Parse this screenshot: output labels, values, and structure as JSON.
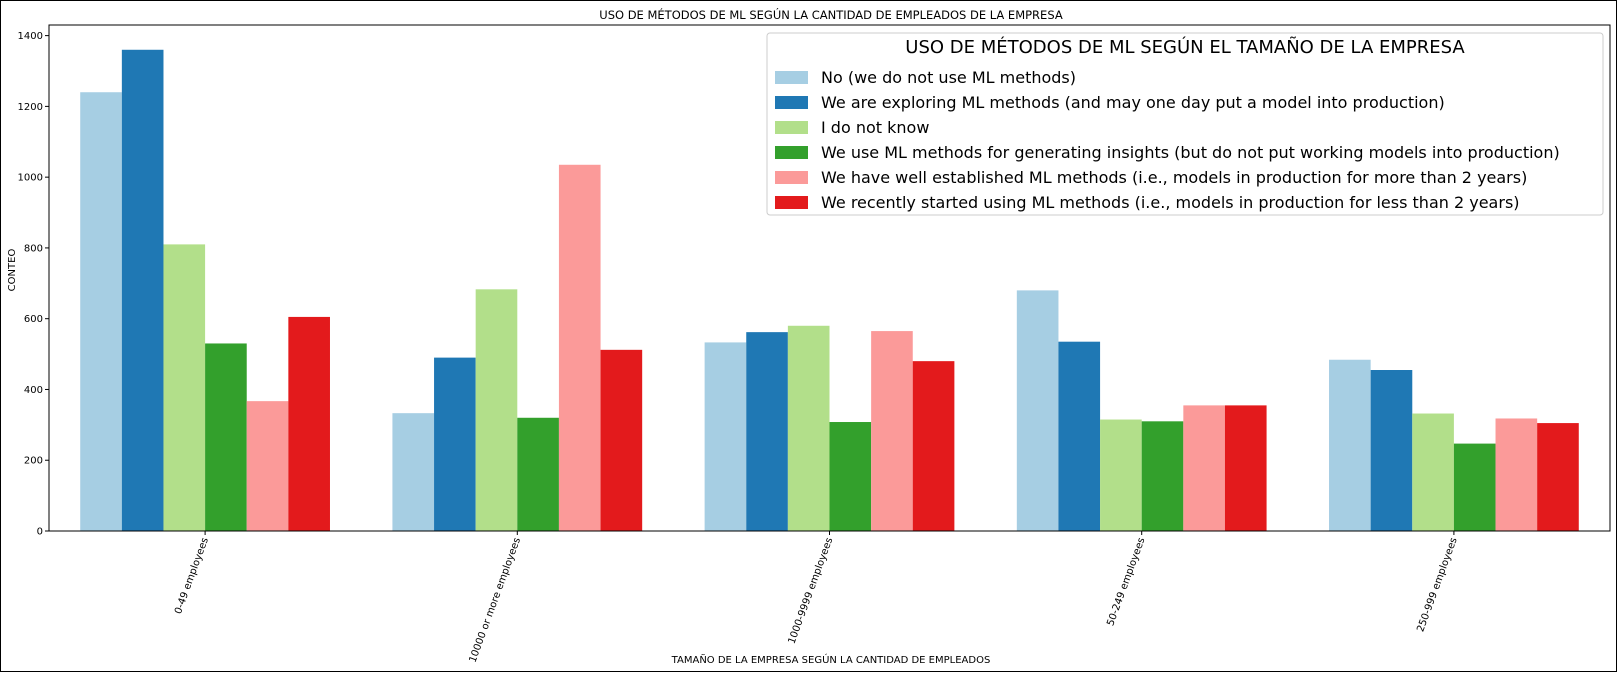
{
  "chart_data": {
    "type": "bar",
    "title": "USO DE MÉTODOS DE ML SEGÚN LA CANTIDAD DE EMPLEADOS DE LA EMPRESA",
    "xlabel": "TAMAÑO DE LA EMPRESA SEGÚN LA CANTIDAD DE EMPLEADOS",
    "ylabel": "CONTEO",
    "ylim": [
      0,
      1430
    ],
    "yticks": [
      0,
      200,
      400,
      600,
      800,
      1000,
      1200,
      1400
    ],
    "grid": false,
    "categories": [
      "0-49 employees",
      "10000 or more employees",
      "1000-9999 employees",
      "50-249 employees",
      "250-999 employees"
    ],
    "legend": {
      "title": "USO DE MÉTODOS DE ML SEGÚN EL TAMAÑO DE LA EMPRESA",
      "placement": "top-right"
    },
    "series": [
      {
        "name": "No (we do not use ML methods)",
        "color": "#a6cee3",
        "values": [
          1240,
          333,
          533,
          680,
          484
        ]
      },
      {
        "name": "We are exploring ML methods (and may one day put a model into production)",
        "color": "#1f78b4",
        "values": [
          1360,
          490,
          562,
          535,
          455
        ]
      },
      {
        "name": "I do not know",
        "color": "#b2df8a",
        "values": [
          810,
          683,
          580,
          315,
          332
        ]
      },
      {
        "name": "We use ML methods for generating insights (but do not put working models into production)",
        "color": "#33a02c",
        "values": [
          530,
          320,
          308,
          310,
          247
        ]
      },
      {
        "name": "We have well established ML methods (i.e., models in production for more than 2 years)",
        "color": "#fb9a99",
        "values": [
          367,
          1035,
          565,
          355,
          318
        ]
      },
      {
        "name": "We recently started using ML methods (i.e., models in production for less than 2 years)",
        "color": "#e31a1c",
        "values": [
          605,
          512,
          480,
          355,
          305
        ]
      }
    ]
  }
}
